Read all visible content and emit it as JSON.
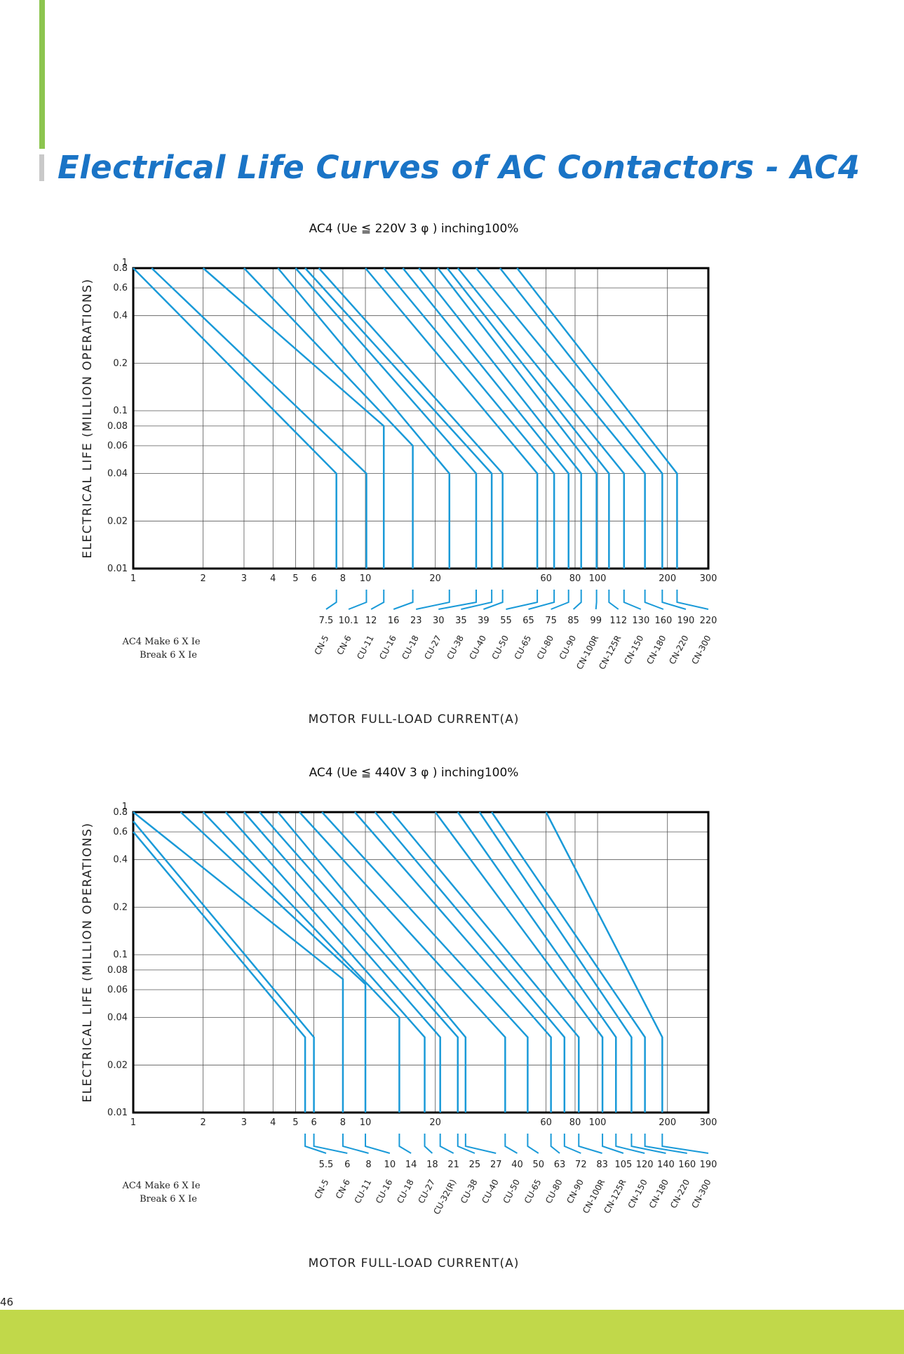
{
  "page": {
    "title": "Electrical Life Curves of AC Contactors - AC4",
    "page_number": "46",
    "colors": {
      "curve": "#1a9ad8",
      "title": "#1a74c6",
      "accent_green": "#8cc54f",
      "footer": "#c1d84a"
    }
  },
  "chart_data": [
    {
      "type": "line",
      "title": "AC4 (Ue ≦ 220V 3 φ ) inching100%",
      "xlabel": "MOTOR FULL-LOAD CURRENT(A)",
      "ylabel": "ELECTRICAL LIFE (MILLION OPERATIONS)",
      "x_scale": "log",
      "xlim": [
        1,
        300
      ],
      "ylim": [
        0.01,
        1
      ],
      "grid": true,
      "y_ticks": [
        "1",
        "0.8",
        "0.6",
        "0.4",
        "0.2",
        "0.1",
        "0.08",
        "0.06",
        "0.04",
        "0.02",
        "0.01"
      ],
      "x_ticks": [
        "1",
        "2",
        "3",
        "4",
        "5",
        "6",
        "8",
        "10",
        "20",
        "60",
        "80",
        "100",
        "200",
        "300"
      ],
      "note_lines": [
        "AC4 Make  6 X Ie",
        "Break 6 X Ie"
      ],
      "series": [
        {
          "name": "CN-5",
          "current": "7.5",
          "x": [
            1,
            7.5,
            7.5
          ],
          "y": [
            1,
            0.04,
            0.01
          ]
        },
        {
          "name": "CN-6",
          "current": "10.1",
          "x": [
            1.2,
            10.1,
            10.1
          ],
          "y": [
            1,
            0.04,
            0.01
          ]
        },
        {
          "name": "CU-11",
          "current": "12",
          "x": [
            2,
            12,
            12
          ],
          "y": [
            1,
            0.08,
            0.01
          ]
        },
        {
          "name": "CU-16",
          "current": "16",
          "x": [
            3,
            16,
            16
          ],
          "y": [
            1,
            0.06,
            0.01
          ]
        },
        {
          "name": "CU-18",
          "current": "23",
          "x": [
            4.2,
            23,
            23
          ],
          "y": [
            1,
            0.04,
            0.01
          ]
        },
        {
          "name": "CU-27",
          "current": "30",
          "x": [
            5,
            30,
            30
          ],
          "y": [
            1,
            0.04,
            0.01
          ]
        },
        {
          "name": "CU-38",
          "current": "35",
          "x": [
            5.5,
            35,
            35
          ],
          "y": [
            1,
            0.04,
            0.01
          ]
        },
        {
          "name": "CU-40",
          "current": "39",
          "x": [
            6.3,
            39,
            39
          ],
          "y": [
            1,
            0.04,
            0.01
          ]
        },
        {
          "name": "CU-50",
          "current": "55",
          "x": [
            10,
            55,
            55
          ],
          "y": [
            1,
            0.04,
            0.01
          ]
        },
        {
          "name": "CU-65",
          "current": "65",
          "x": [
            12,
            65,
            65
          ],
          "y": [
            1,
            0.04,
            0.01
          ]
        },
        {
          "name": "CU-80",
          "current": "75",
          "x": [
            14.5,
            75,
            75
          ],
          "y": [
            1,
            0.04,
            0.01
          ]
        },
        {
          "name": "CU-90",
          "current": "85",
          "x": [
            17,
            85,
            85
          ],
          "y": [
            1,
            0.04,
            0.01
          ]
        },
        {
          "name": "CN-100R",
          "current": "99",
          "x": [
            20.5,
            99,
            99
          ],
          "y": [
            1,
            0.04,
            0.01
          ]
        },
        {
          "name": "CN-125R",
          "current": "112",
          "x": [
            22.5,
            112,
            112
          ],
          "y": [
            1,
            0.04,
            0.01
          ]
        },
        {
          "name": "CN-150",
          "current": "130",
          "x": [
            25,
            130,
            130
          ],
          "y": [
            1,
            0.04,
            0.01
          ]
        },
        {
          "name": "CN-180",
          "current": "160",
          "x": [
            30,
            160,
            160
          ],
          "y": [
            1,
            0.04,
            0.01
          ]
        },
        {
          "name": "CN-220",
          "current": "190",
          "x": [
            38,
            190,
            190
          ],
          "y": [
            1,
            0.04,
            0.01
          ]
        },
        {
          "name": "CN-300",
          "current": "220",
          "x": [
            45,
            220,
            220
          ],
          "y": [
            1,
            0.04,
            0.01
          ]
        }
      ]
    },
    {
      "type": "line",
      "title": "AC4 (Ue ≦ 440V 3 φ ) inching100%",
      "xlabel": "MOTOR FULL-LOAD CURRENT(A)",
      "ylabel": "ELECTRICAL LIFE (MILLION OPERATIONS)",
      "x_scale": "log",
      "xlim": [
        1,
        300
      ],
      "ylim": [
        0.01,
        1
      ],
      "grid": true,
      "y_ticks": [
        "1",
        "0.8",
        "0.6",
        "0.4",
        "0.2",
        "0.1",
        "0.08",
        "0.06",
        "0.04",
        "0.02",
        "0.01"
      ],
      "x_ticks": [
        "1",
        "2",
        "3",
        "4",
        "5",
        "6",
        "8",
        "10",
        "20",
        "60",
        "80",
        "100",
        "200",
        "300"
      ],
      "note_lines": [
        "AC4 Make  6 X Ie",
        "Break 6 X Ie"
      ],
      "series": [
        {
          "name": "CN-5",
          "current": "5.5",
          "x": [
            1,
            5.5,
            5.5
          ],
          "y": [
            0.6,
            0.03,
            0.01
          ]
        },
        {
          "name": "CN-6",
          "current": "6",
          "x": [
            1,
            6,
            6
          ],
          "y": [
            0.7,
            0.03,
            0.01
          ]
        },
        {
          "name": "CU-11",
          "current": "8",
          "x": [
            1,
            8,
            8
          ],
          "y": [
            0.8,
            0.07,
            0.01
          ]
        },
        {
          "name": "CU-16",
          "current": "10",
          "x": [
            1.6,
            10,
            10
          ],
          "y": [
            1,
            0.065,
            0.01
          ]
        },
        {
          "name": "CU-18",
          "current": "14",
          "x": [
            2,
            14,
            14
          ],
          "y": [
            1,
            0.04,
            0.01
          ]
        },
        {
          "name": "CU-27",
          "current": "18",
          "x": [
            2.5,
            18,
            18
          ],
          "y": [
            1,
            0.03,
            0.01
          ]
        },
        {
          "name": "CU-32(R)",
          "current": "21",
          "x": [
            3,
            21,
            21
          ],
          "y": [
            1,
            0.03,
            0.01
          ]
        },
        {
          "name": "CU-38",
          "current": "25",
          "x": [
            3.5,
            25,
            25
          ],
          "y": [
            1,
            0.03,
            0.01
          ]
        },
        {
          "name": "CU-40",
          "current": "27",
          "x": [
            4.2,
            27,
            27
          ],
          "y": [
            1,
            0.03,
            0.01
          ]
        },
        {
          "name": "CU-50",
          "current": "40",
          "x": [
            5.2,
            40,
            40
          ],
          "y": [
            1,
            0.03,
            0.01
          ]
        },
        {
          "name": "CU-65",
          "current": "50",
          "x": [
            6.5,
            50,
            50
          ],
          "y": [
            1,
            0.03,
            0.01
          ]
        },
        {
          "name": "CU-80",
          "current": "63",
          "x": [
            9,
            63,
            63
          ],
          "y": [
            1,
            0.03,
            0.01
          ]
        },
        {
          "name": "CN-90",
          "current": "72",
          "x": [
            11,
            72,
            72
          ],
          "y": [
            1,
            0.03,
            0.01
          ]
        },
        {
          "name": "CN-100R",
          "current": "83",
          "x": [
            13,
            83,
            83
          ],
          "y": [
            1,
            0.03,
            0.01
          ]
        },
        {
          "name": "CN-125R",
          "current": "105",
          "x": [
            20,
            105,
            105
          ],
          "y": [
            1,
            0.03,
            0.01
          ]
        },
        {
          "name": "CN-150",
          "current": "120",
          "x": [
            25,
            120,
            120
          ],
          "y": [
            1,
            0.03,
            0.01
          ]
        },
        {
          "name": "CN-180",
          "current": "140",
          "x": [
            31,
            140,
            140
          ],
          "y": [
            1,
            0.03,
            0.01
          ]
        },
        {
          "name": "CN-220",
          "current": "160",
          "x": [
            35,
            160,
            160
          ],
          "y": [
            1,
            0.03,
            0.01
          ]
        },
        {
          "name": "CN-300",
          "current": "190",
          "x": [
            60,
            190,
            190
          ],
          "y": [
            1,
            0.03,
            0.01
          ]
        }
      ]
    }
  ]
}
